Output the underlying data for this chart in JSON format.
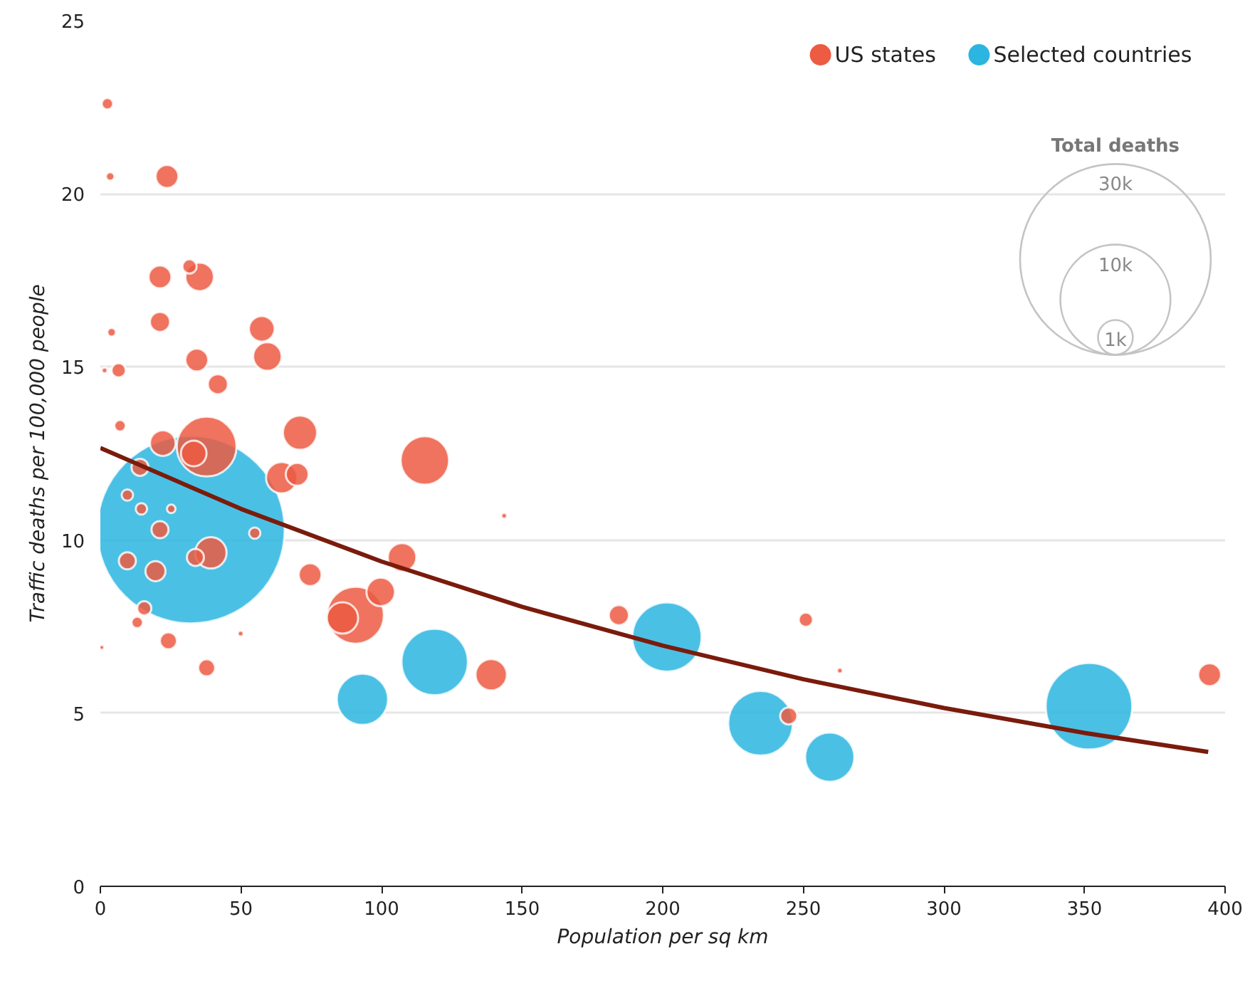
{
  "chart_data": {
    "type": "bubble",
    "xlabel": "Population per sq km",
    "ylabel": "Traffic deaths per 100,000 people",
    "legend_title": "Total deaths",
    "xlim": [
      0,
      400
    ],
    "xticks": [
      0,
      50,
      100,
      150,
      200,
      250,
      300,
      350,
      400
    ],
    "ylim": [
      0,
      25
    ],
    "yticks": [
      0,
      5,
      10,
      15,
      20,
      25
    ],
    "grid": "y",
    "legend": "top right",
    "size_legend": [
      {
        "value": 1000,
        "label": "1k"
      },
      {
        "value": 10000,
        "label": "10k"
      },
      {
        "value": 30000,
        "label": "30k"
      }
    ],
    "series": [
      {
        "name": "US states",
        "color": "#ec5b42",
        "x": [
          37.8,
          90.7,
          115.4,
          71,
          64.5,
          59.4,
          35.3,
          57.4,
          86.1,
          107.3,
          99.7,
          139,
          39.3,
          22.2,
          33.2,
          23.7,
          21.2,
          34.3,
          21.2,
          74.6,
          70,
          41.8,
          31.7,
          14.1,
          21.2,
          19.6,
          37.8,
          24.2,
          33.8,
          9.6,
          184.4,
          2.5,
          7,
          9.6,
          14.6,
          15.6,
          244.8,
          394.5,
          6.5,
          13.1,
          250.9,
          3.5,
          4,
          54.9,
          25.2,
          143.6,
          49.9,
          263,
          1.5,
          0.5
        ],
        "values": [
          12.7,
          7.83,
          12.3,
          13.1,
          11.8,
          15.3,
          17.6,
          16.1,
          7.75,
          9.5,
          8.5,
          6.11,
          9.63,
          12.8,
          12.5,
          20.5,
          17.6,
          15.2,
          16.3,
          9.0,
          11.9,
          14.5,
          17.9,
          12.1,
          10.3,
          9.1,
          6.31,
          7.09,
          9.5,
          9.4,
          7.83,
          22.6,
          13.3,
          11.3,
          10.9,
          8.03,
          4.92,
          6.11,
          14.9,
          7.62,
          7.7,
          20.5,
          16.0,
          10.2,
          10.9,
          10.7,
          7.3,
          6.23,
          14.9,
          6.9
        ],
        "sizes": [
          2947,
          2673,
          1930,
          962,
          808,
          668,
          668,
          541,
          808,
          668,
          668,
          808,
          808,
          541,
          541,
          428,
          428,
          428,
          330,
          428,
          428,
          330,
          167,
          240,
          240,
          330,
          240,
          240,
          240,
          240,
          330,
          107,
          107,
          107,
          107,
          167,
          240,
          428,
          167,
          107,
          167,
          60,
          60,
          107,
          60,
          27,
          27,
          27,
          27,
          20
        ]
      },
      {
        "name": "Selected countries",
        "color": "#2bb5e0",
        "x": [
          32.2,
          93.2,
          118.9,
          201.5,
          234.8,
          259.4,
          351.6
        ],
        "values": [
          10.3,
          5.4,
          6.48,
          7.2,
          4.71,
          3.73,
          5.2
        ],
        "sizes": [
          29000,
          2165,
          3630,
          3950,
          3450,
          2000,
          6180
        ]
      },
      {
        "type": "line",
        "color": "#7a1b0c",
        "x": [
          0,
          50,
          100,
          150,
          200,
          250,
          300,
          350,
          394
        ],
        "values": [
          12.66,
          10.9,
          9.38,
          8.07,
          6.95,
          5.98,
          5.15,
          4.43,
          3.88
        ]
      }
    ]
  }
}
